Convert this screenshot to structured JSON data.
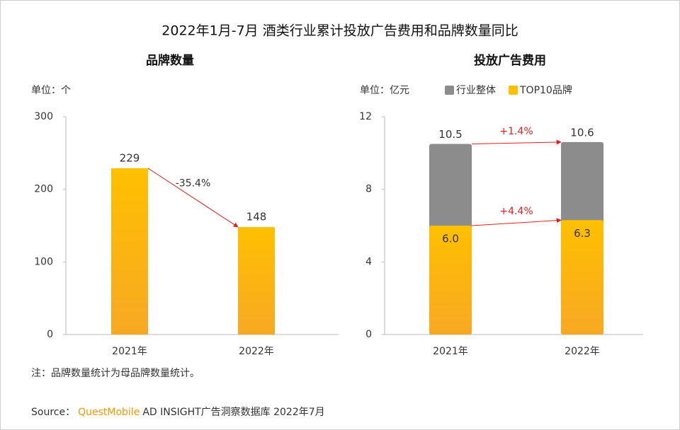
{
  "title": "2022年1月-7月 酒类行业累计投放广告费用和品牌数量同比",
  "chart_data": [
    {
      "type": "bar",
      "title": "品牌数量",
      "unit": "单位：个",
      "categories": [
        "2021年",
        "2022年"
      ],
      "values": [
        229,
        148
      ],
      "color": "#ffc000",
      "ylim": [
        0,
        300
      ],
      "yticks": [
        0,
        100,
        200,
        300
      ],
      "change_label": "-35.4%",
      "annotation_color": "#333333"
    },
    {
      "type": "overlap_bar",
      "title": "投放广告费用",
      "unit": "单位：亿元",
      "categories": [
        "2021年",
        "2022年"
      ],
      "series": [
        {
          "name": "行业整体",
          "color": "#8c8c8c",
          "values": [
            10.5,
            10.6
          ],
          "change_label": "+1.4%"
        },
        {
          "name": "TOP10品牌",
          "color": "#ffc000",
          "values": [
            6.0,
            6.3
          ],
          "value_labels": [
            "6.0",
            "6.3"
          ],
          "change_label": "+4.4%"
        }
      ],
      "ylim": [
        0,
        12
      ],
      "yticks": [
        0,
        4,
        8,
        12
      ],
      "annotation_color": "#e02020"
    }
  ],
  "note": "注：品牌数量统计为母品牌数量统计。",
  "source": {
    "prefix": "Source：",
    "brand": "QuestMobile",
    "text": "AD INSIGHT广告洞察数据库 2022年7月"
  }
}
